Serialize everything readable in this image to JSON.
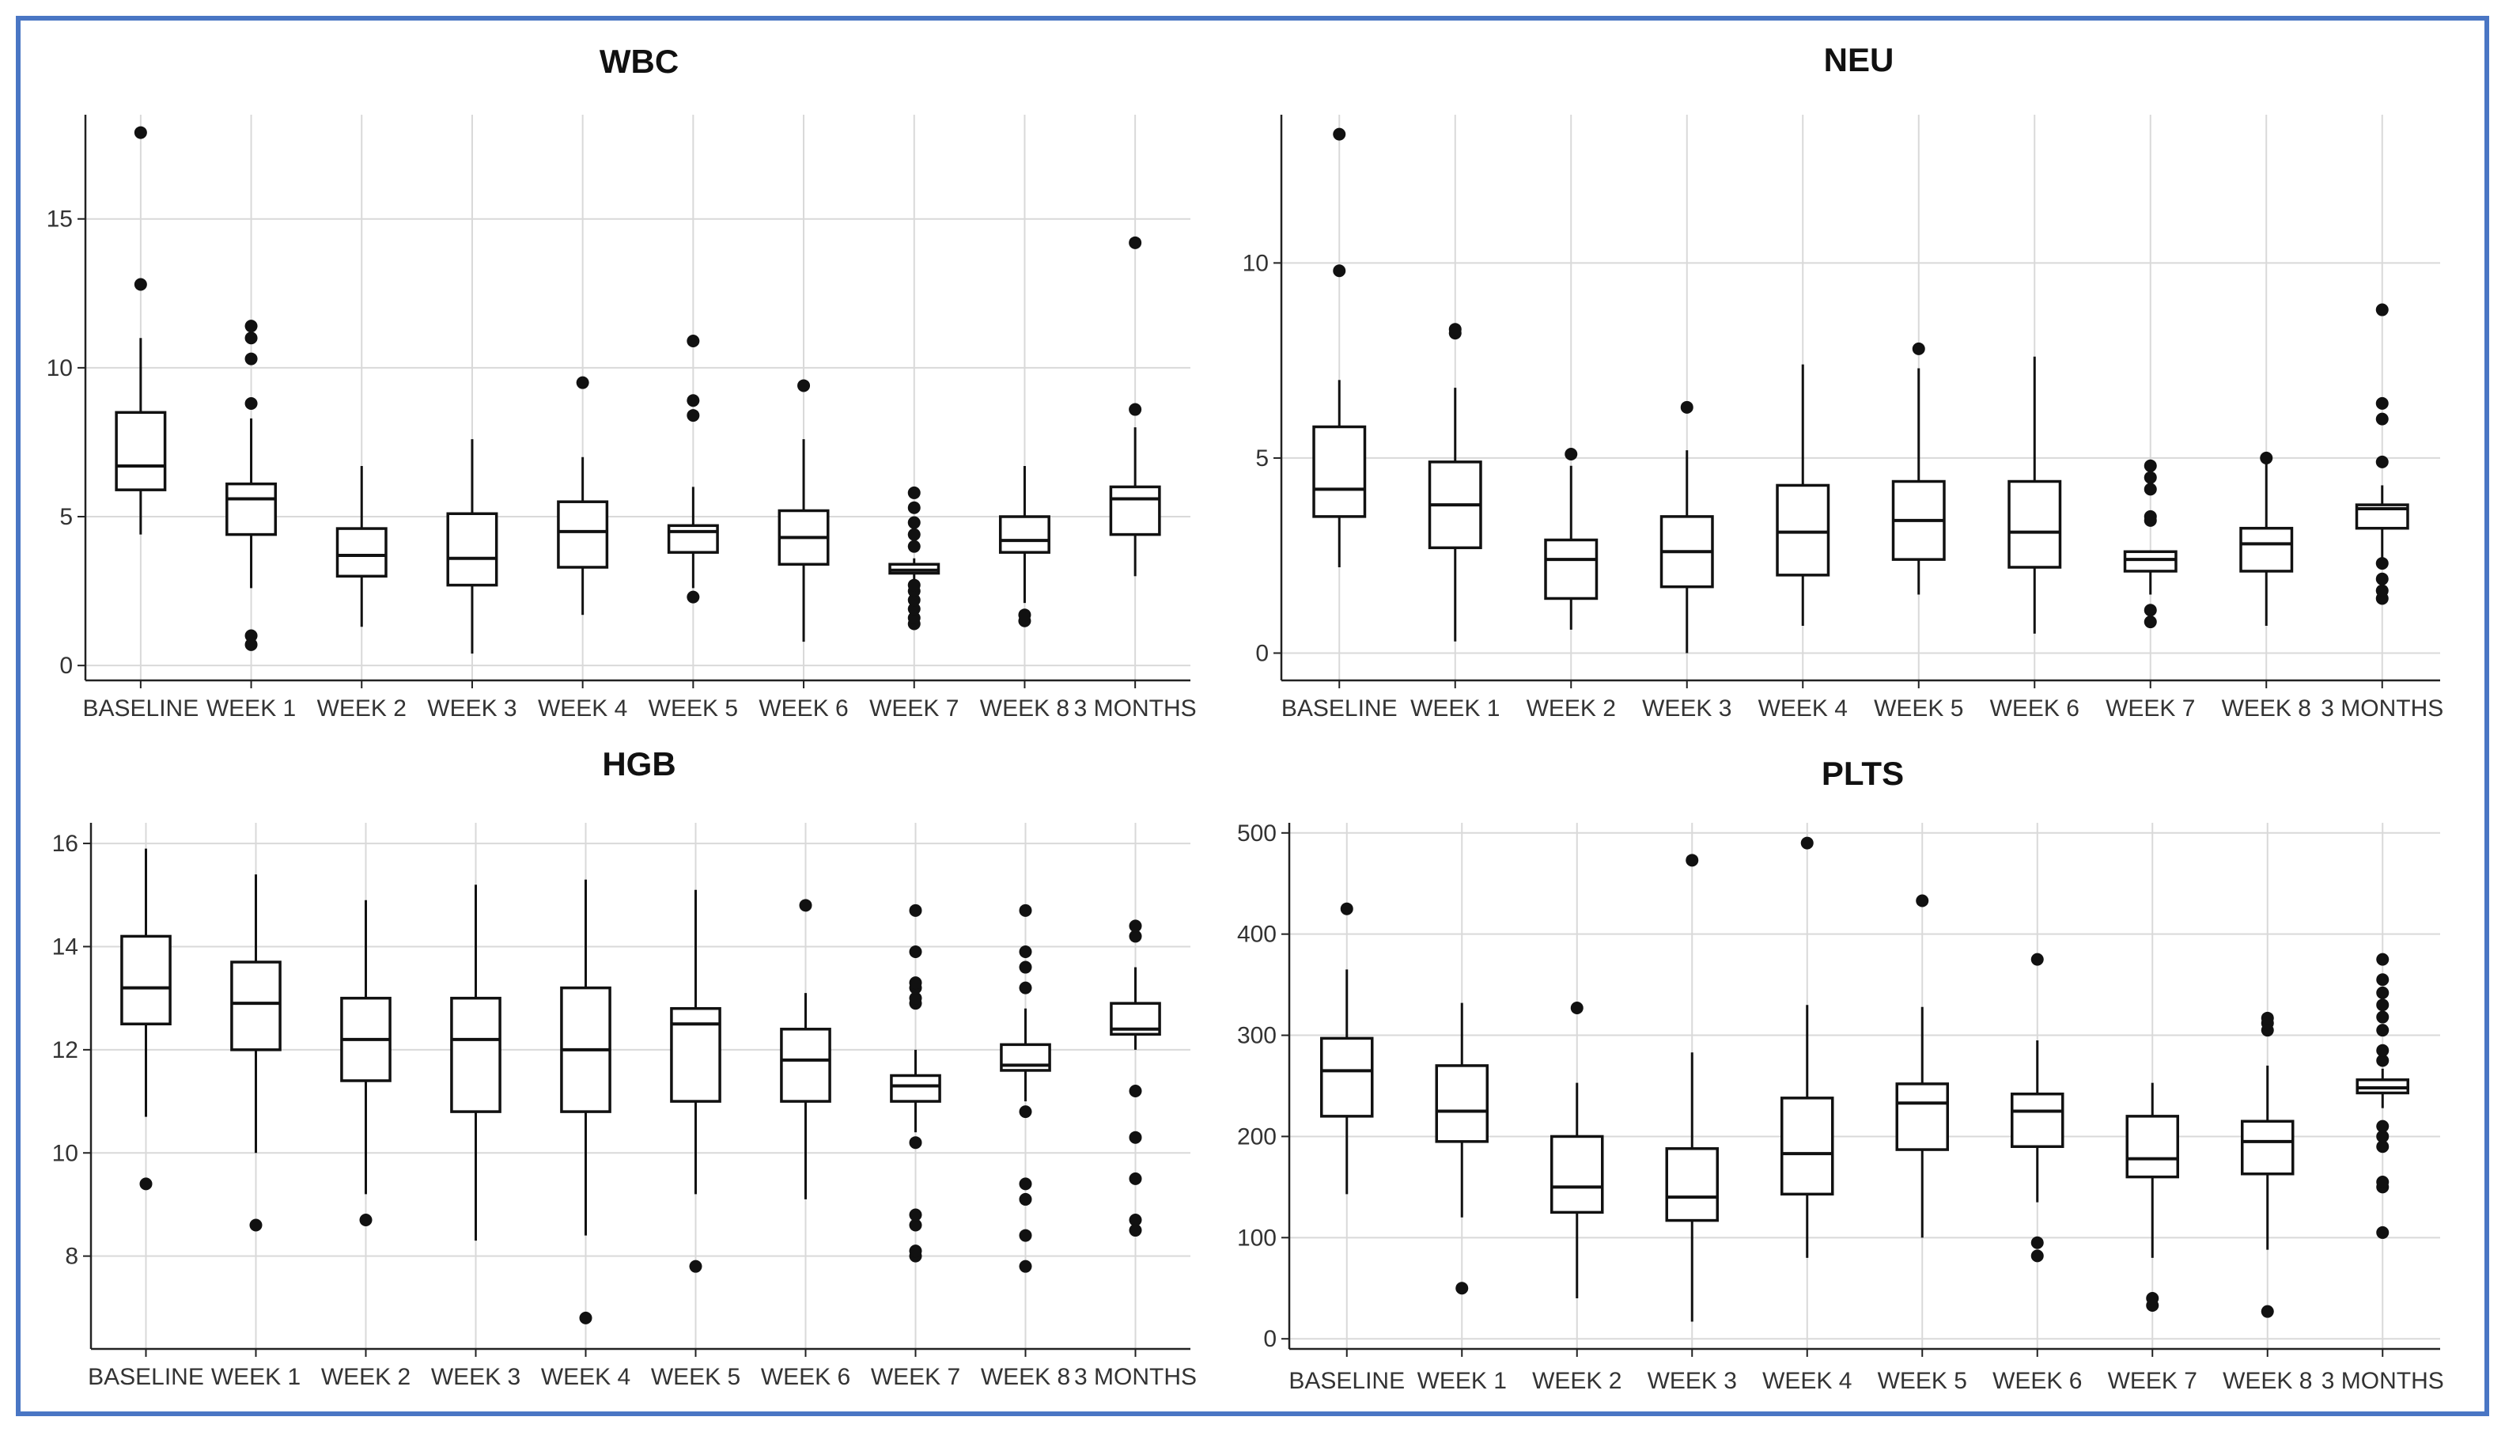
{
  "frame_color": "#4a76c4",
  "categories": [
    "BASELINE",
    "WEEK 1",
    "WEEK 2",
    "WEEK 3",
    "WEEK 4",
    "WEEK 5",
    "WEEK 6",
    "WEEK 7",
    "WEEK 8",
    "3 MONTHS"
  ],
  "chart_data": [
    {
      "type": "box",
      "title": "WBC",
      "ylim": [
        -0.5,
        18.5
      ],
      "yticks": [
        0,
        5,
        10,
        15
      ],
      "grid": true,
      "boxes": [
        {
          "q1": 5.9,
          "median": 6.7,
          "q3": 8.5,
          "low": 4.4,
          "high": 11.0,
          "outliers": [
            12.8,
            17.9
          ]
        },
        {
          "q1": 4.4,
          "median": 5.6,
          "q3": 6.1,
          "low": 2.6,
          "high": 8.3,
          "outliers": [
            0.7,
            1.0,
            8.8,
            10.3,
            11.0,
            11.4
          ]
        },
        {
          "q1": 3.0,
          "median": 3.7,
          "q3": 4.6,
          "low": 1.3,
          "high": 6.7,
          "outliers": []
        },
        {
          "q1": 2.7,
          "median": 3.6,
          "q3": 5.1,
          "low": 0.4,
          "high": 7.6,
          "outliers": []
        },
        {
          "q1": 3.3,
          "median": 4.5,
          "q3": 5.5,
          "low": 1.7,
          "high": 7.0,
          "outliers": [
            9.5
          ]
        },
        {
          "q1": 3.8,
          "median": 4.5,
          "q3": 4.7,
          "low": 2.6,
          "high": 6.0,
          "outliers": [
            2.3,
            8.4,
            8.9,
            10.9
          ]
        },
        {
          "q1": 3.4,
          "median": 4.3,
          "q3": 5.2,
          "low": 0.8,
          "high": 7.6,
          "outliers": [
            9.4
          ]
        },
        {
          "q1": 3.1,
          "median": 3.2,
          "q3": 3.4,
          "low": 2.9,
          "high": 3.6,
          "outliers": [
            1.4,
            1.6,
            1.9,
            2.2,
            2.5,
            2.7,
            4.0,
            4.4,
            4.8,
            5.3,
            5.8
          ]
        },
        {
          "q1": 3.8,
          "median": 4.2,
          "q3": 5.0,
          "low": 2.1,
          "high": 6.7,
          "outliers": [
            1.5,
            1.7
          ]
        },
        {
          "q1": 4.4,
          "median": 5.6,
          "q3": 6.0,
          "low": 3.0,
          "high": 8.0,
          "outliers": [
            8.6,
            14.2
          ]
        }
      ]
    },
    {
      "type": "box",
      "title": "NEU",
      "ylim": [
        -0.7,
        13.8
      ],
      "yticks": [
        0,
        5,
        10
      ],
      "grid": true,
      "boxes": [
        {
          "q1": 3.5,
          "median": 4.2,
          "q3": 5.8,
          "low": 2.2,
          "high": 7.0,
          "outliers": [
            9.8,
            13.3
          ]
        },
        {
          "q1": 2.7,
          "median": 3.8,
          "q3": 4.9,
          "low": 0.3,
          "high": 6.8,
          "outliers": [
            8.2,
            8.3
          ]
        },
        {
          "q1": 1.4,
          "median": 2.4,
          "q3": 2.9,
          "low": 0.6,
          "high": 4.8,
          "outliers": [
            5.1
          ]
        },
        {
          "q1": 1.7,
          "median": 2.6,
          "q3": 3.5,
          "low": 0.0,
          "high": 5.2,
          "outliers": [
            6.3
          ]
        },
        {
          "q1": 2.0,
          "median": 3.1,
          "q3": 4.3,
          "low": 0.7,
          "high": 7.4,
          "outliers": []
        },
        {
          "q1": 2.4,
          "median": 3.4,
          "q3": 4.4,
          "low": 1.5,
          "high": 7.3,
          "outliers": [
            7.8
          ]
        },
        {
          "q1": 2.2,
          "median": 3.1,
          "q3": 4.4,
          "low": 0.5,
          "high": 7.6,
          "outliers": []
        },
        {
          "q1": 2.1,
          "median": 2.4,
          "q3": 2.6,
          "low": 1.5,
          "high": 2.6,
          "outliers": [
            0.8,
            1.1,
            3.4,
            3.5,
            4.2,
            4.5,
            4.8
          ]
        },
        {
          "q1": 2.1,
          "median": 2.8,
          "q3": 3.2,
          "low": 0.7,
          "high": 4.9,
          "outliers": [
            5.0
          ]
        },
        {
          "q1": 3.2,
          "median": 3.7,
          "q3": 3.8,
          "low": 2.4,
          "high": 4.3,
          "outliers": [
            1.4,
            1.6,
            1.9,
            2.3,
            4.9,
            6.0,
            6.4,
            8.8
          ]
        }
      ]
    },
    {
      "type": "box",
      "title": "HGB",
      "ylim": [
        6.2,
        16.4
      ],
      "yticks": [
        8,
        10,
        12,
        14,
        16
      ],
      "grid": true,
      "boxes": [
        {
          "q1": 12.5,
          "median": 13.2,
          "q3": 14.2,
          "low": 10.7,
          "high": 15.9,
          "outliers": [
            9.4
          ]
        },
        {
          "q1": 12.0,
          "median": 12.9,
          "q3": 13.7,
          "low": 10.0,
          "high": 15.4,
          "outliers": [
            8.6
          ]
        },
        {
          "q1": 11.4,
          "median": 12.2,
          "q3": 13.0,
          "low": 9.2,
          "high": 14.9,
          "outliers": [
            8.7
          ]
        },
        {
          "q1": 10.8,
          "median": 12.2,
          "q3": 13.0,
          "low": 8.3,
          "high": 15.2,
          "outliers": []
        },
        {
          "q1": 10.8,
          "median": 12.0,
          "q3": 13.2,
          "low": 8.4,
          "high": 15.3,
          "outliers": [
            6.8
          ]
        },
        {
          "q1": 11.0,
          "median": 12.5,
          "q3": 12.8,
          "low": 9.2,
          "high": 15.1,
          "outliers": [
            7.8
          ]
        },
        {
          "q1": 11.0,
          "median": 11.8,
          "q3": 12.4,
          "low": 9.1,
          "high": 13.1,
          "outliers": [
            14.8
          ]
        },
        {
          "q1": 11.0,
          "median": 11.3,
          "q3": 11.5,
          "low": 10.4,
          "high": 12.0,
          "outliers": [
            8.0,
            8.1,
            8.6,
            8.8,
            10.2,
            12.9,
            13.0,
            13.2,
            13.3,
            13.9,
            14.7
          ]
        },
        {
          "q1": 11.6,
          "median": 11.7,
          "q3": 12.1,
          "low": 11.0,
          "high": 12.8,
          "outliers": [
            7.8,
            8.4,
            9.1,
            9.4,
            10.8,
            13.2,
            13.6,
            13.9,
            14.7
          ]
        },
        {
          "q1": 12.3,
          "median": 12.4,
          "q3": 12.9,
          "low": 12.0,
          "high": 13.6,
          "outliers": [
            8.5,
            8.7,
            9.5,
            10.3,
            11.2,
            14.2,
            14.4
          ]
        }
      ]
    },
    {
      "type": "box",
      "title": "PLTS",
      "ylim": [
        -10,
        510
      ],
      "yticks": [
        0,
        100,
        200,
        300,
        400,
        500
      ],
      "grid": true,
      "boxes": [
        {
          "q1": 220,
          "median": 265,
          "q3": 297,
          "low": 143,
          "high": 365,
          "outliers": [
            425
          ]
        },
        {
          "q1": 195,
          "median": 225,
          "q3": 270,
          "low": 120,
          "high": 332,
          "outliers": [
            50
          ]
        },
        {
          "q1": 125,
          "median": 150,
          "q3": 200,
          "low": 40,
          "high": 253,
          "outliers": [
            327
          ]
        },
        {
          "q1": 117,
          "median": 140,
          "q3": 188,
          "low": 17,
          "high": 283,
          "outliers": [
            473
          ]
        },
        {
          "q1": 143,
          "median": 183,
          "q3": 238,
          "low": 80,
          "high": 330,
          "outliers": [
            490
          ]
        },
        {
          "q1": 187,
          "median": 233,
          "q3": 252,
          "low": 100,
          "high": 328,
          "outliers": [
            433
          ]
        },
        {
          "q1": 190,
          "median": 225,
          "q3": 242,
          "low": 135,
          "high": 295,
          "outliers": [
            82,
            95,
            375
          ]
        },
        {
          "q1": 160,
          "median": 178,
          "q3": 220,
          "low": 80,
          "high": 253,
          "outliers": [
            33,
            40
          ]
        },
        {
          "q1": 163,
          "median": 195,
          "q3": 215,
          "low": 88,
          "high": 270,
          "outliers": [
            27,
            305,
            312,
            317
          ]
        },
        {
          "q1": 243,
          "median": 248,
          "q3": 256,
          "low": 228,
          "high": 267,
          "outliers": [
            105,
            150,
            155,
            190,
            200,
            210,
            275,
            285,
            305,
            318,
            330,
            342,
            355,
            375
          ]
        }
      ]
    }
  ]
}
